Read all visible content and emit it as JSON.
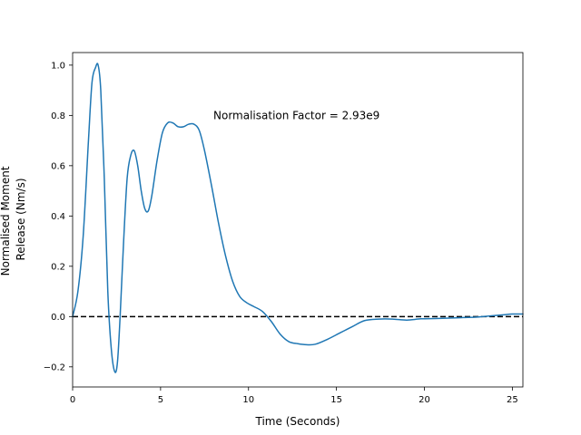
{
  "chart_data": {
    "type": "line",
    "xlabel": "Time (Seconds)",
    "ylabel_lines": [
      "Normalised Moment",
      "Release (Nm/s)"
    ],
    "xlim": [
      0,
      25.6
    ],
    "ylim": [
      -0.28,
      1.05
    ],
    "xticks": [
      0,
      5,
      10,
      15,
      20,
      25
    ],
    "yticks": [
      -0.2,
      0.0,
      0.2,
      0.4,
      0.6,
      0.8,
      1.0
    ],
    "xtick_labels": [
      "0",
      "5",
      "10",
      "15",
      "20",
      "25"
    ],
    "ytick_labels": [
      "−0.2",
      "0.0",
      "0.2",
      "0.4",
      "0.6",
      "0.8",
      "1.0"
    ],
    "annotation": {
      "text": "Normalisation Factor = 2.93e9",
      "x": 8.0,
      "y": 0.8
    },
    "reference_line": {
      "y": 0.0,
      "style": "dashed",
      "color": "#000000"
    },
    "series": [
      {
        "color": "#1f77b4",
        "x": [
          0,
          0.3,
          0.6,
          0.9,
          1.1,
          1.3,
          1.45,
          1.6,
          1.8,
          2.0,
          2.2,
          2.4,
          2.55,
          2.7,
          2.9,
          3.1,
          3.3,
          3.5,
          3.7,
          3.9,
          4.1,
          4.3,
          4.5,
          4.8,
          5.1,
          5.4,
          5.7,
          6.0,
          6.3,
          6.6,
          6.9,
          7.2,
          7.5,
          7.9,
          8.3,
          8.7,
          9.1,
          9.5,
          9.9,
          10.3,
          10.8,
          11.3,
          11.8,
          12.3,
          12.8,
          13.3,
          13.8,
          14.5,
          15.2,
          15.9,
          16.6,
          17.4,
          18.2,
          19.0,
          19.8,
          20.6,
          21.4,
          22.2,
          23.0,
          23.8,
          24.5,
          25.0,
          25.6
        ],
        "y": [
          0.0,
          0.1,
          0.32,
          0.7,
          0.93,
          0.99,
          1.0,
          0.9,
          0.55,
          0.1,
          -0.13,
          -0.22,
          -0.18,
          0.0,
          0.3,
          0.55,
          0.64,
          0.66,
          0.6,
          0.5,
          0.43,
          0.42,
          0.48,
          0.62,
          0.73,
          0.77,
          0.77,
          0.755,
          0.755,
          0.765,
          0.765,
          0.74,
          0.66,
          0.52,
          0.37,
          0.24,
          0.14,
          0.08,
          0.055,
          0.04,
          0.02,
          -0.02,
          -0.07,
          -0.1,
          -0.108,
          -0.112,
          -0.11,
          -0.09,
          -0.065,
          -0.04,
          -0.016,
          -0.01,
          -0.01,
          -0.014,
          -0.009,
          -0.008,
          -0.006,
          -0.004,
          -0.002,
          0.003,
          0.007,
          0.01,
          0.01
        ]
      }
    ]
  }
}
